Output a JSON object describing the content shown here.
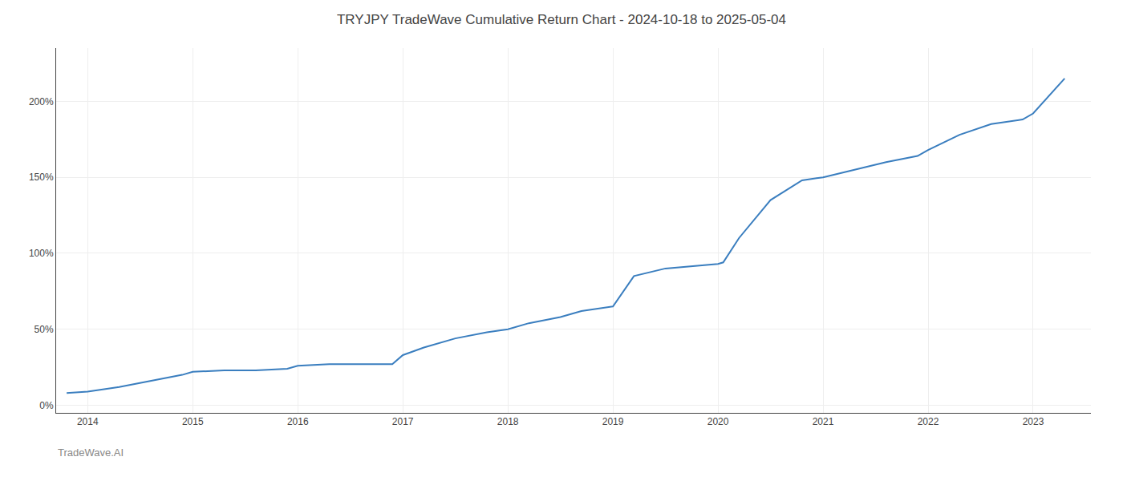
{
  "chart_data": {
    "type": "line",
    "title": "TRYJPY TradeWave Cumulative Return Chart - 2024-10-18 to 2025-05-04",
    "annotations": [
      {
        "text": "TradeWave.AI"
      }
    ],
    "x": [
      2013.8,
      2014.0,
      2014.3,
      2014.6,
      2014.9,
      2015.0,
      2015.3,
      2015.6,
      2015.9,
      2016.0,
      2016.3,
      2016.6,
      2016.9,
      2017.0,
      2017.2,
      2017.5,
      2017.8,
      2018.0,
      2018.2,
      2018.5,
      2018.7,
      2019.0,
      2019.2,
      2019.5,
      2019.8,
      2020.0,
      2020.05,
      2020.2,
      2020.5,
      2020.8,
      2021.0,
      2021.3,
      2021.6,
      2021.9,
      2022.0,
      2022.3,
      2022.6,
      2022.9,
      2023.0,
      2023.3
    ],
    "values": [
      8,
      9,
      12,
      16,
      20,
      22,
      23,
      23,
      24,
      26,
      27,
      27,
      27,
      33,
      38,
      44,
      48,
      50,
      54,
      58,
      62,
      65,
      85,
      90,
      92,
      93,
      94,
      110,
      135,
      148,
      150,
      155,
      160,
      164,
      168,
      178,
      185,
      188,
      192,
      215
    ],
    "color": "#3a7ebf",
    "xlim": [
      2013.7,
      2023.55
    ],
    "xticks": [
      2014,
      2015,
      2016,
      2017,
      2018,
      2019,
      2020,
      2021,
      2022,
      2023
    ],
    "ylim": [
      -5,
      235
    ],
    "yticks": [
      {
        "value": 0,
        "label": "0%"
      },
      {
        "value": 50,
        "label": "50%"
      },
      {
        "value": 100,
        "label": "100%"
      },
      {
        "value": 150,
        "label": "150%"
      },
      {
        "value": 200,
        "label": "200%"
      }
    ],
    "grid": true
  }
}
